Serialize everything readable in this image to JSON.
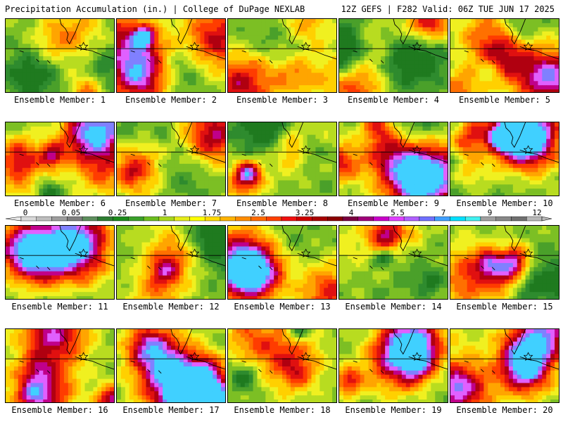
{
  "header": {
    "title": "Precipitation Accumulation (in.) | College of DuPage NEXLAB",
    "run_info": "12Z GEFS | F282 Valid: 06Z TUE JUN 17 2025"
  },
  "panels": [
    {
      "label": "Ensemble Member: 1"
    },
    {
      "label": "Ensemble Member: 2"
    },
    {
      "label": "Ensemble Member: 3"
    },
    {
      "label": "Ensemble Member: 4"
    },
    {
      "label": "Ensemble Member: 5"
    },
    {
      "label": "Ensemble Member: 6"
    },
    {
      "label": "Ensemble Member: 7"
    },
    {
      "label": "Ensemble Member: 8"
    },
    {
      "label": "Ensemble Member: 9"
    },
    {
      "label": "Ensemble Member: 10"
    },
    {
      "label": "Ensemble Member: 11"
    },
    {
      "label": "Ensemble Member: 12"
    },
    {
      "label": "Ensemble Member: 13"
    },
    {
      "label": "Ensemble Member: 14"
    },
    {
      "label": "Ensemble Member: 15"
    },
    {
      "label": "Ensemble Member: 16"
    },
    {
      "label": "Ensemble Member: 17"
    },
    {
      "label": "Ensemble Member: 18"
    },
    {
      "label": "Ensemble Member: 19"
    },
    {
      "label": "Ensemble Member: 20"
    }
  ],
  "colorbar": {
    "tick_labels": [
      "0",
      "0.05",
      "0.25",
      "1",
      "1.75",
      "2.5",
      "3.25",
      "4",
      "5.5",
      "7",
      "9",
      "12"
    ],
    "colors": [
      "#d9d9d9",
      "#bdbdbd",
      "#9e9e9e",
      "#7f7f7f",
      "#5e8f5e",
      "#2e7d32",
      "#1b8a1b",
      "#3aa02a",
      "#6bbd20",
      "#a8d61c",
      "#e5ec1a",
      "#ffff00",
      "#ffd900",
      "#ffb300",
      "#ff8c00",
      "#ff6a00",
      "#ff4000",
      "#f01010",
      "#cc0000",
      "#a80000",
      "#8b0000",
      "#7a0040",
      "#a0007a",
      "#c800c8",
      "#e040ff",
      "#b060ff",
      "#7070ff",
      "#40a0ff",
      "#00e0ff",
      "#40f0f0",
      "#a0a0a0",
      "#888888",
      "#707070",
      "#b8b8b8"
    ]
  }
}
